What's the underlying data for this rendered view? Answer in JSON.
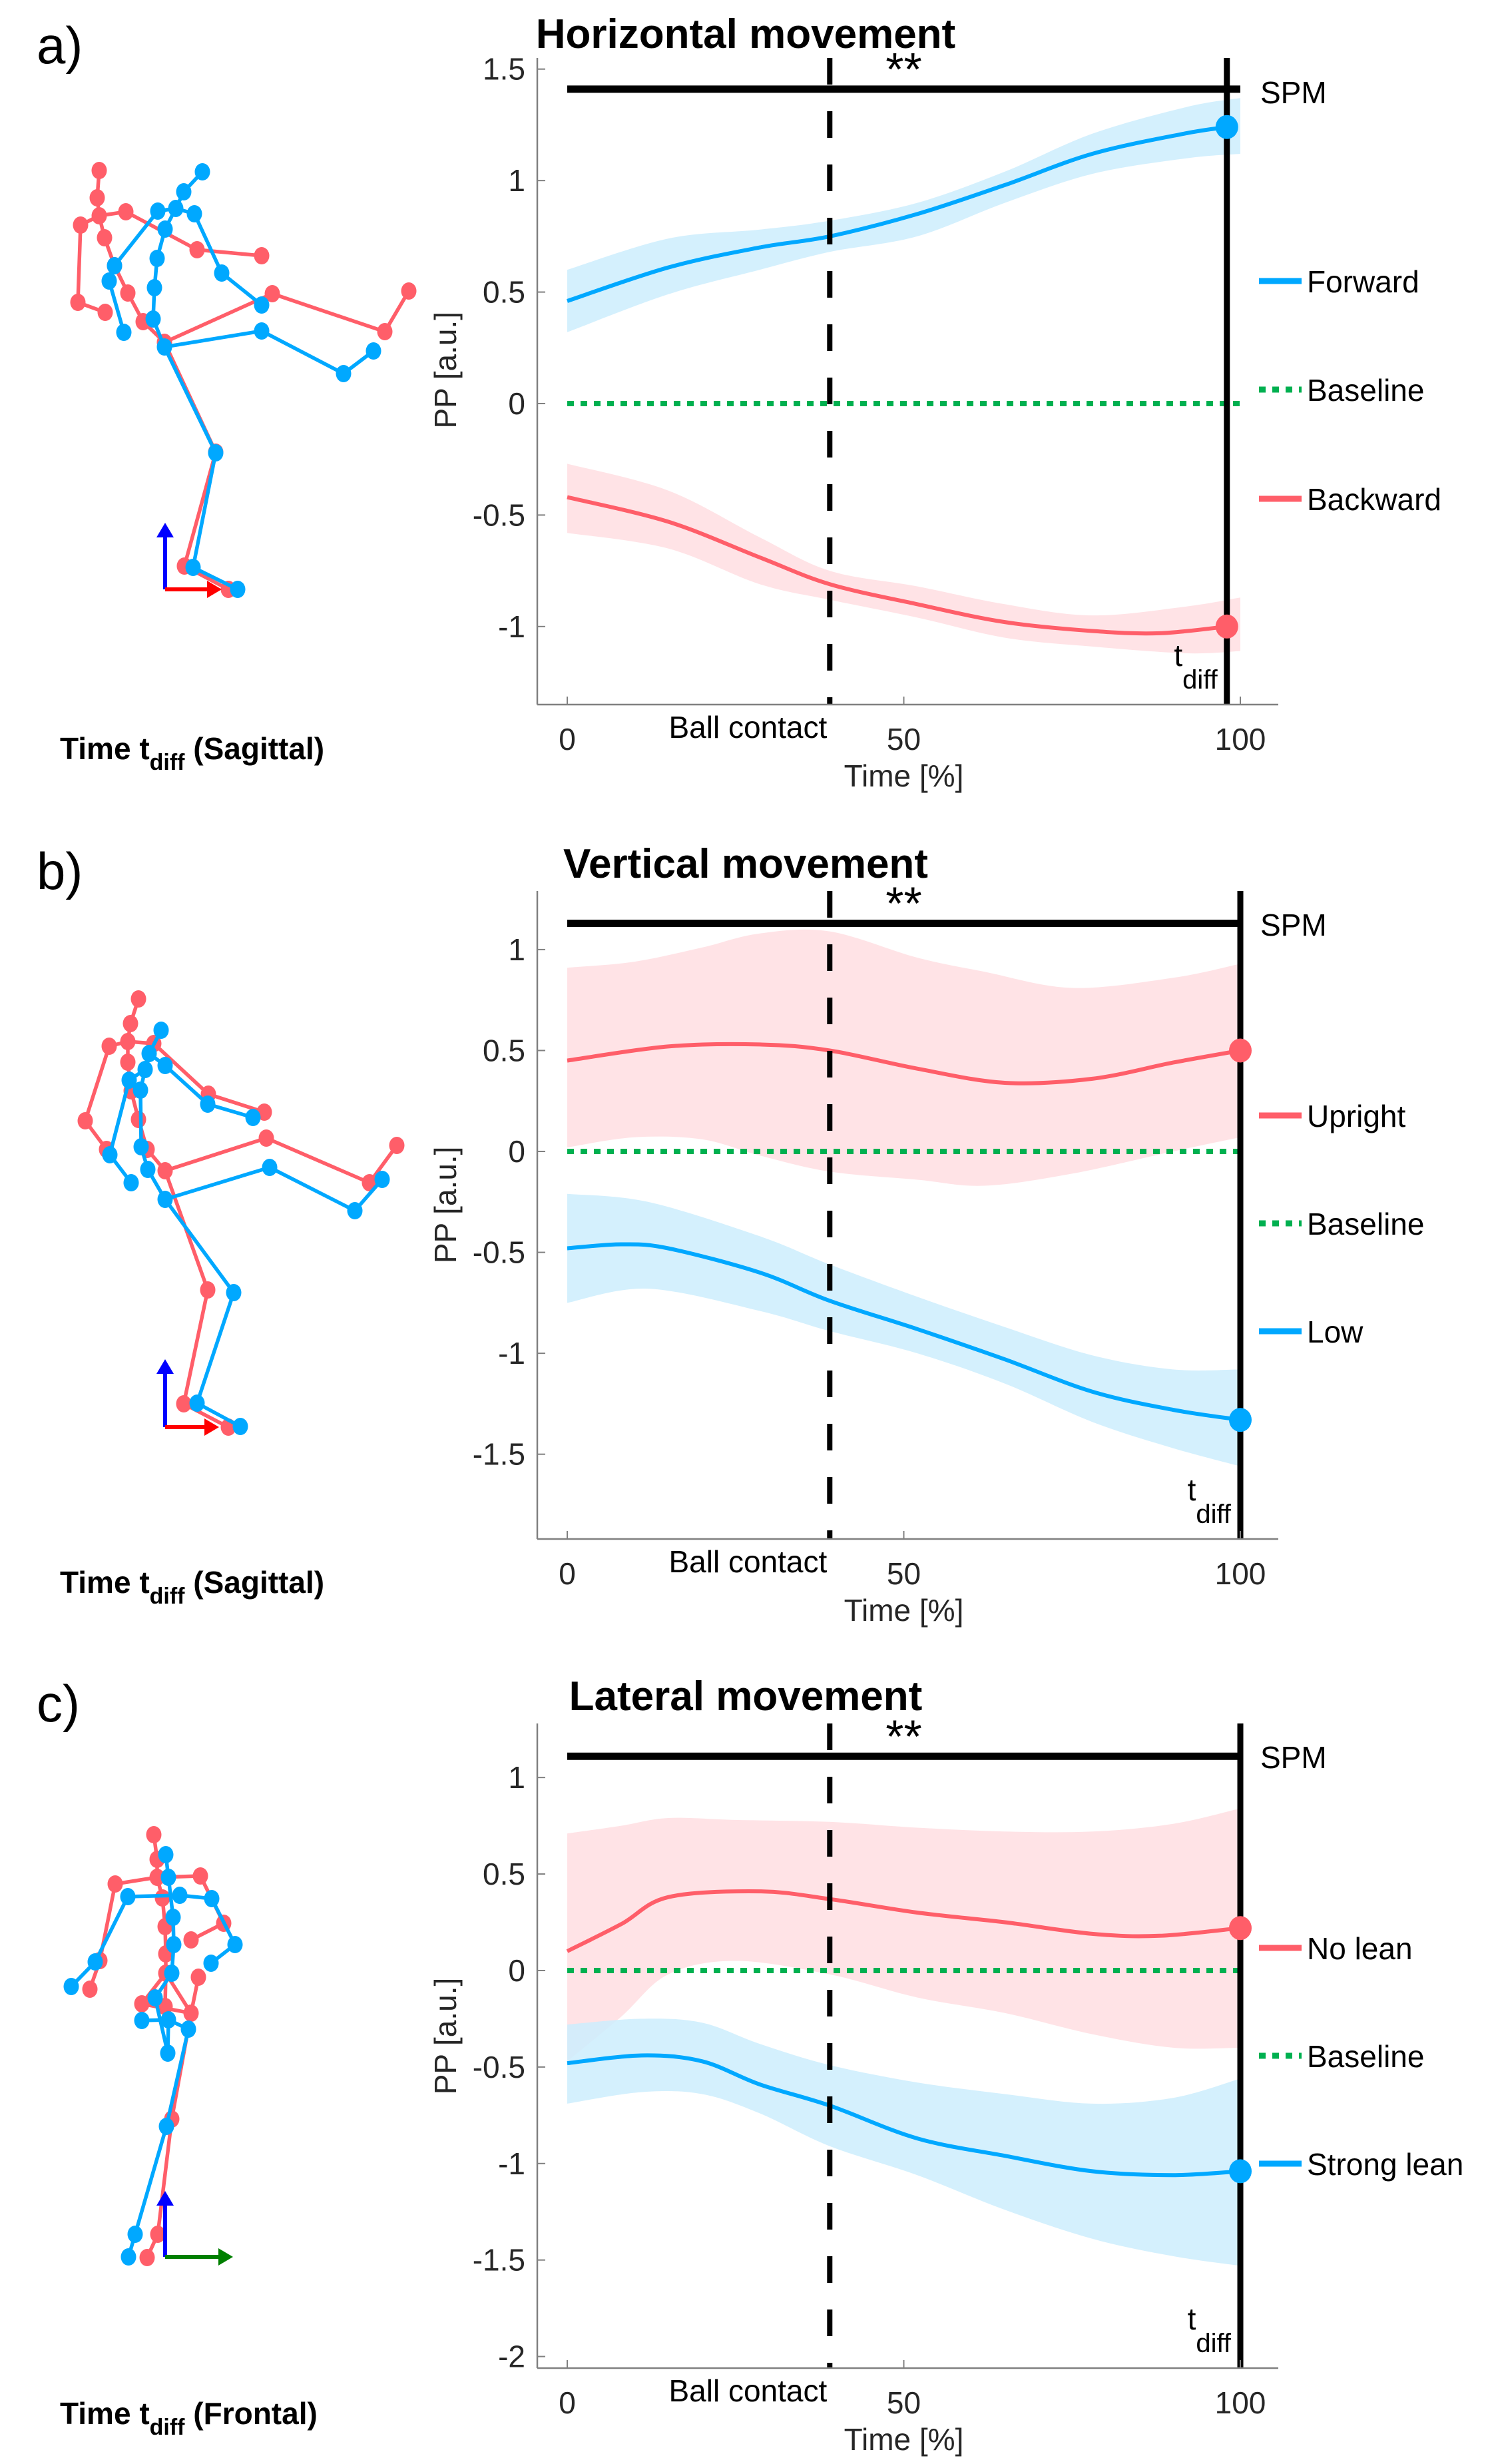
{
  "figure": {
    "colors": {
      "blue": "#00A8FF",
      "blue_band": "#CCEDFD",
      "red": "#FF5E69",
      "red_band": "#FFDEE2",
      "green": "#00B050",
      "black": "#000000",
      "axis": "#808080",
      "arrow_up": "#0000FF",
      "arrow_right_sagittal": "#FF0000",
      "arrow_right_frontal": "#008000"
    }
  },
  "chart_data": [
    {
      "type": "line",
      "panel_letter": "a)",
      "title": "Horizontal movement",
      "xlabel": "Time [%]",
      "ylabel": "PP [a.u.]",
      "xlim": [
        0,
        100
      ],
      "ylim": [
        -1.35,
        1.55
      ],
      "xticks": [
        0,
        50,
        100
      ],
      "xtick_labels": [
        "0",
        "50",
        "100"
      ],
      "yticks": [
        -1,
        -0.5,
        0,
        0.5,
        1,
        1.5
      ],
      "ytick_labels": [
        "-1",
        "-0.5",
        "0",
        "0.5",
        "1",
        "1.5"
      ],
      "grid": false,
      "legend_position": "right",
      "annotations": {
        "ball_contact": {
          "x": 39,
          "label": "Ball contact"
        },
        "t_diff": {
          "x": 98,
          "label_main": "t",
          "label_sub": "diff"
        },
        "spm": {
          "label": "SPM",
          "y": 1.41,
          "x_start": 0,
          "x_end": 100,
          "significance": "**"
        }
      },
      "series": [
        {
          "name": "Forward",
          "color_key": "blue",
          "x": [
            0,
            15,
            28.6,
            39,
            52,
            65,
            78,
            91.6,
            98
          ],
          "mean": [
            0.46,
            0.61,
            0.7,
            0.75,
            0.85,
            0.98,
            1.12,
            1.21,
            1.24
          ],
          "band_x": [
            0,
            15,
            28.6,
            39,
            52,
            65,
            78,
            92,
            100
          ],
          "upper": [
            0.6,
            0.74,
            0.78,
            0.82,
            0.9,
            1.04,
            1.21,
            1.33,
            1.37
          ],
          "lower": [
            0.32,
            0.49,
            0.6,
            0.68,
            0.75,
            0.9,
            1.03,
            1.1,
            1.12
          ],
          "marker_x": 98,
          "marker_y": 1.24
        },
        {
          "name": "Baseline",
          "color_key": "green",
          "style": "dotted",
          "x": [
            0,
            100
          ],
          "mean": [
            0,
            0
          ]
        },
        {
          "name": "Backward",
          "color_key": "red",
          "x": [
            0,
            15,
            28.6,
            39,
            52,
            65,
            78,
            88,
            98
          ],
          "mean": [
            -0.42,
            -0.53,
            -0.69,
            -0.81,
            -0.9,
            -0.98,
            -1.02,
            -1.03,
            -1.0
          ],
          "band_x": [
            0,
            15,
            28.6,
            39,
            52,
            65,
            78,
            92,
            100
          ],
          "upper": [
            -0.27,
            -0.39,
            -0.6,
            -0.75,
            -0.82,
            -0.9,
            -0.95,
            -0.91,
            -0.87
          ],
          "lower": [
            -0.58,
            -0.65,
            -0.81,
            -0.88,
            -0.96,
            -1.05,
            -1.09,
            -1.12,
            -1.11
          ],
          "marker_x": 98,
          "marker_y": -1.0
        }
      ],
      "skeleton": {
        "caption_main": "Time t",
        "caption_sub": "diff",
        "caption_suffix": " (Sagittal)",
        "view": "sagittal"
      }
    },
    {
      "type": "line",
      "panel_letter": "b)",
      "title": "Vertical movement",
      "xlabel": "Time [%]",
      "ylabel": "PP [a.u.]",
      "xlim": [
        0,
        100
      ],
      "ylim": [
        -1.92,
        1.29
      ],
      "xticks": [
        0,
        50,
        100
      ],
      "xtick_labels": [
        "0",
        "50",
        "100"
      ],
      "yticks": [
        -1.5,
        -1,
        -0.5,
        0,
        0.5,
        1
      ],
      "ytick_labels": [
        "-1.5",
        "-1",
        "-0.5",
        "0",
        "0.5",
        "1"
      ],
      "grid": false,
      "legend_position": "right",
      "annotations": {
        "ball_contact": {
          "x": 39,
          "label": "Ball contact"
        },
        "t_diff": {
          "x": 100,
          "label_main": "t",
          "label_sub": "diff"
        },
        "spm": {
          "label": "SPM",
          "y": 1.13,
          "x_start": 0,
          "x_end": 100,
          "significance": "**"
        }
      },
      "series": [
        {
          "name": "Upright",
          "color_key": "red",
          "x": [
            0,
            15,
            28.6,
            39,
            52,
            65,
            78,
            90,
            100
          ],
          "mean": [
            0.45,
            0.52,
            0.53,
            0.5,
            0.41,
            0.34,
            0.36,
            0.44,
            0.5
          ],
          "band_x": [
            0,
            10,
            20,
            28.6,
            39,
            52,
            62,
            75,
            90,
            100
          ],
          "upper": [
            0.91,
            0.94,
            1.01,
            1.08,
            1.09,
            0.96,
            0.89,
            0.81,
            0.86,
            0.93
          ],
          "lower": [
            0.02,
            0.07,
            0.06,
            -0.02,
            -0.1,
            -0.14,
            -0.17,
            -0.11,
            0.0,
            0.07
          ],
          "marker_x": 100,
          "marker_y": 0.5
        },
        {
          "name": "Baseline",
          "color_key": "green",
          "style": "dotted",
          "x": [
            0,
            100
          ],
          "mean": [
            0,
            0
          ]
        },
        {
          "name": "Low",
          "color_key": "blue",
          "x": [
            0,
            8,
            15,
            28.6,
            39,
            52,
            65,
            78,
            90,
            100
          ],
          "mean": [
            -0.48,
            -0.46,
            -0.48,
            -0.6,
            -0.74,
            -0.88,
            -1.03,
            -1.19,
            -1.28,
            -1.33
          ],
          "band_x": [
            0,
            12,
            28.6,
            39,
            52,
            65,
            78,
            90,
            100
          ],
          "upper": [
            -0.21,
            -0.25,
            -0.42,
            -0.56,
            -0.72,
            -0.87,
            -1.01,
            -1.08,
            -1.08
          ],
          "lower": [
            -0.75,
            -0.68,
            -0.79,
            -0.89,
            -1.0,
            -1.15,
            -1.34,
            -1.47,
            -1.56
          ],
          "marker_x": 100,
          "marker_y": -1.33
        }
      ],
      "skeleton": {
        "caption_main": "Time t",
        "caption_sub": "diff",
        "caption_suffix": " (Sagittal)",
        "view": "sagittal"
      }
    },
    {
      "type": "line",
      "panel_letter": "c)",
      "title": "Lateral movement",
      "xlabel": "Time [%]",
      "ylabel": "PP [a.u.]",
      "xlim": [
        0,
        100
      ],
      "ylim": [
        -2.06,
        1.28
      ],
      "xticks": [
        0,
        50,
        100
      ],
      "xtick_labels": [
        "0",
        "50",
        "100"
      ],
      "yticks": [
        -2,
        -1.5,
        -1,
        -0.5,
        0,
        0.5,
        1
      ],
      "ytick_labels": [
        "-2",
        "-1.5",
        "-1",
        "-0.5",
        "0",
        "0.5",
        "1"
      ],
      "grid": false,
      "legend_position": "right",
      "annotations": {
        "ball_contact": {
          "x": 39,
          "label": "Ball contact"
        },
        "t_diff": {
          "x": 100,
          "label_main": "t",
          "label_sub": "diff"
        },
        "spm": {
          "label": "SPM",
          "y": 1.11,
          "x_start": 0,
          "x_end": 100,
          "significance": "**"
        }
      },
      "series": [
        {
          "name": "No lean",
          "color_key": "red",
          "x": [
            0,
            8,
            15,
            28.6,
            39,
            52,
            65,
            78,
            88,
            100
          ],
          "mean": [
            0.1,
            0.24,
            0.38,
            0.41,
            0.37,
            0.3,
            0.25,
            0.19,
            0.18,
            0.22
          ],
          "band_x": [
            0,
            8,
            15,
            25,
            39,
            52,
            65,
            78,
            90,
            100
          ],
          "upper": [
            0.71,
            0.75,
            0.79,
            0.78,
            0.77,
            0.74,
            0.72,
            0.72,
            0.76,
            0.84
          ],
          "lower": [
            -0.47,
            -0.24,
            -0.02,
            0.05,
            -0.02,
            -0.14,
            -0.22,
            -0.33,
            -0.4,
            -0.4
          ],
          "marker_x": 100,
          "marker_y": 0.22
        },
        {
          "name": "Baseline",
          "color_key": "green",
          "style": "dotted",
          "x": [
            0,
            100
          ],
          "mean": [
            0,
            0
          ]
        },
        {
          "name": "Strong lean",
          "color_key": "blue",
          "x": [
            0,
            11,
            20,
            28.6,
            39,
            52,
            65,
            78,
            90,
            100
          ],
          "mean": [
            -0.48,
            -0.44,
            -0.47,
            -0.59,
            -0.7,
            -0.87,
            -0.96,
            -1.04,
            -1.06,
            -1.04
          ],
          "band_x": [
            0,
            11,
            20,
            28.6,
            39,
            52,
            65,
            78,
            90,
            100
          ],
          "upper": [
            -0.28,
            -0.25,
            -0.27,
            -0.38,
            -0.49,
            -0.58,
            -0.64,
            -0.69,
            -0.66,
            -0.56
          ],
          "lower": [
            -0.69,
            -0.63,
            -0.64,
            -0.74,
            -0.91,
            -1.06,
            -1.24,
            -1.39,
            -1.48,
            -1.53
          ],
          "marker_x": 100,
          "marker_y": -1.04
        }
      ],
      "skeleton": {
        "caption_main": "Time t",
        "caption_sub": "diff",
        "caption_suffix": " (Frontal)",
        "view": "frontal"
      }
    }
  ]
}
